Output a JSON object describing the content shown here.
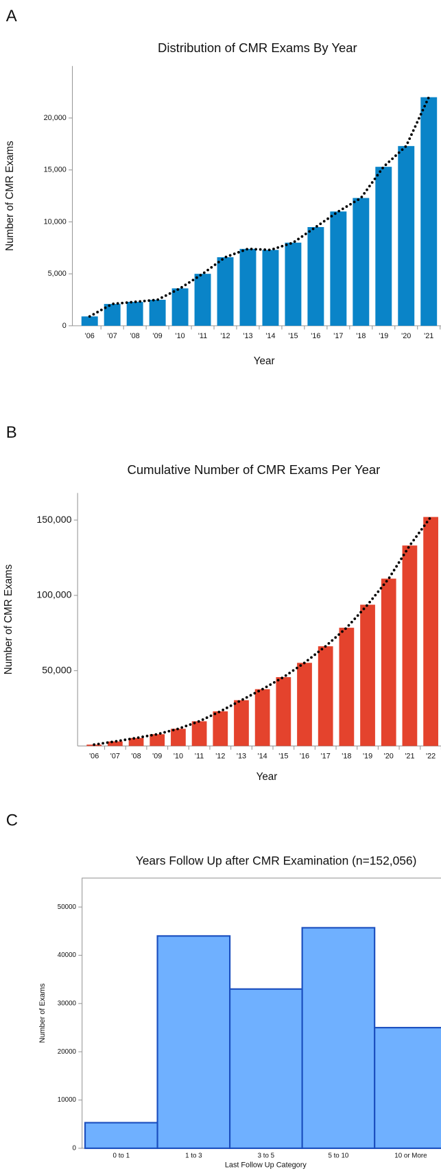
{
  "chart_data": [
    {
      "type": "bar",
      "panel": "A",
      "title": "Distribution of CMR Exams By Year",
      "x_label": "Year",
      "y_label": "Number of CMR Exams",
      "categories": [
        "'06",
        "'07",
        "'08",
        "'09",
        "'10",
        "'11",
        "'12",
        "'13",
        "'14",
        "'15",
        "'16",
        "'17",
        "'18",
        "'19",
        "'20",
        "'21"
      ],
      "values": [
        900,
        2100,
        2300,
        2500,
        3600,
        5000,
        6600,
        7400,
        7300,
        8000,
        9500,
        11000,
        12300,
        15300,
        17300,
        22000
      ],
      "color": "#0a84c8",
      "trend_line": true,
      "ylim": [
        0,
        25000
      ],
      "yticks": [
        0,
        {
          "value": 5000,
          "label": "5,000"
        },
        {
          "value": 10000,
          "label": "10,000"
        },
        {
          "value": 15000,
          "label": "15,000"
        },
        {
          "value": 20000,
          "label": "20,000"
        }
      ]
    },
    {
      "type": "bar",
      "panel": "B",
      "title": "Cumulative Number of CMR Exams Per Year",
      "x_label": "Year",
      "y_label": "Number of CMR Exams",
      "categories": [
        "'06",
        "'07",
        "'08",
        "'09",
        "'10",
        "'11",
        "'12",
        "'13",
        "'14",
        "'15",
        "'16",
        "'17",
        "'18",
        "'19",
        "'20",
        "'21",
        "'22"
      ],
      "values": [
        900,
        3000,
        5300,
        7800,
        11400,
        16400,
        23000,
        30400,
        37700,
        45700,
        55200,
        66200,
        78500,
        93800,
        111100,
        133100,
        152056
      ],
      "color": "#e4432d",
      "trend_line": true,
      "ylim": [
        0,
        168000
      ],
      "yticks": [
        {
          "value": 50000,
          "label": "50,000"
        },
        {
          "value": 100000,
          "label": "100,000"
        },
        {
          "value": 150000,
          "label": "150,000"
        }
      ]
    },
    {
      "type": "bar",
      "panel": "C",
      "title": "Years Follow Up after CMR Examination (n=152,056)",
      "x_label": "Last Follow Up Category",
      "y_label": "Number of Exams",
      "categories": [
        "0 to 1",
        "1 to 3",
        "3 to 5",
        "5 to 10",
        "10 or More"
      ],
      "values": [
        5300,
        44000,
        33000,
        45700,
        25000
      ],
      "color": "#6fb0ff",
      "edge_color": "#1b4fbf",
      "trend_line": false,
      "ylim": [
        0,
        56000
      ],
      "yticks": [
        0,
        10000,
        20000,
        30000,
        40000,
        50000
      ]
    }
  ]
}
